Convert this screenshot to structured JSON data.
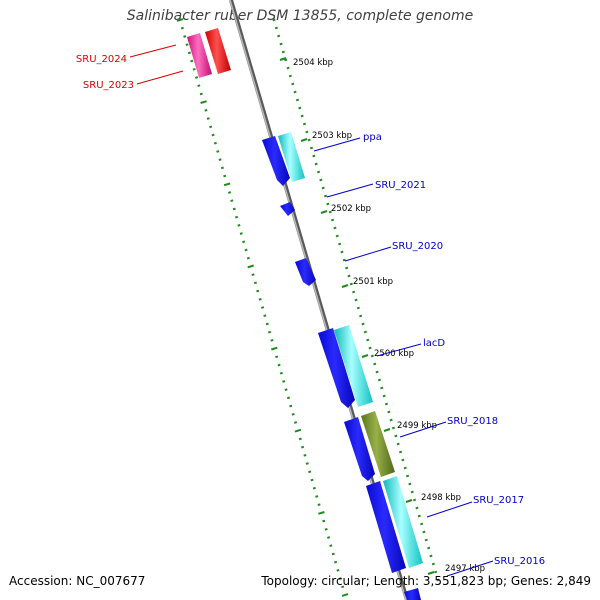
{
  "title": "Salinibacter ruber DSM 13855, complete genome",
  "accession_label": "Accession: NC_007677",
  "summary_label": "Topology: circular; Length: 3,551,823 bp; Genes: 2,849",
  "colors": {
    "backbone": "#7a7a7a",
    "tick": "#1f8a1f",
    "label_blue": "#0000cc",
    "label_red": "#dd0000",
    "gene_blue": "#1010ee",
    "gene_cyan": "#17d6d6",
    "gene_red": "#ee1111",
    "gene_pink": "#ee1f8e",
    "gene_olive": "#6d8a28"
  },
  "kbp_ticks": [
    "2504 kbp",
    "2503 kbp",
    "2502 kbp",
    "2501 kbp",
    "2500 kbp",
    "2499 kbp",
    "2498 kbp",
    "2497 kbp"
  ],
  "gene_labels": [
    {
      "text": "SRU_2024",
      "color": "red"
    },
    {
      "text": "SRU_2023",
      "color": "red"
    },
    {
      "text": "ppa",
      "color": "blue"
    },
    {
      "text": "SRU_2021",
      "color": "blue"
    },
    {
      "text": "SRU_2020",
      "color": "blue"
    },
    {
      "text": "lacD",
      "color": "blue"
    },
    {
      "text": "SRU_2018",
      "color": "blue"
    },
    {
      "text": "SRU_2017",
      "color": "blue"
    },
    {
      "text": "SRU_2016",
      "color": "blue"
    }
  ]
}
